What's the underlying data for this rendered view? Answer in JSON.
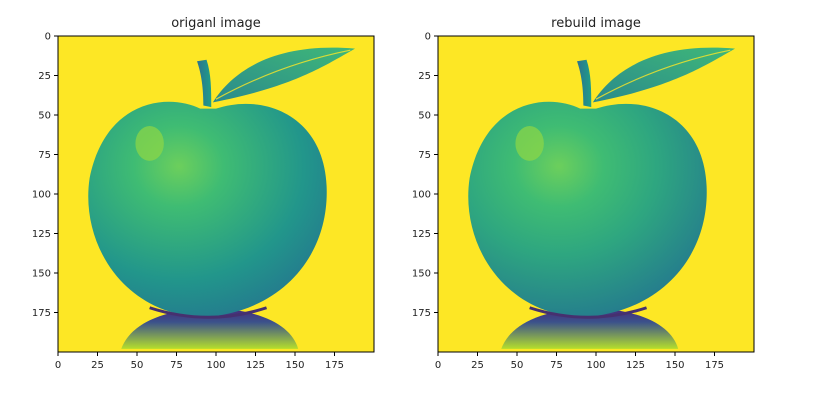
{
  "chart_data": [
    {
      "type": "heatmap",
      "title": "origanl image",
      "image_size": [
        200,
        200
      ],
      "colormap": "viridis",
      "background_value": "high (yellow)",
      "subject": "apple-with-leaf",
      "x_ticks": [
        0,
        25,
        50,
        75,
        100,
        125,
        150,
        175
      ],
      "y_ticks": [
        0,
        25,
        50,
        75,
        100,
        125,
        150,
        175
      ],
      "xlim": [
        0,
        200
      ],
      "ylim": [
        200,
        0
      ]
    },
    {
      "type": "heatmap",
      "title": "rebuild image",
      "image_size": [
        200,
        200
      ],
      "colormap": "viridis",
      "background_value": "high (yellow)",
      "subject": "apple-with-leaf",
      "x_ticks": [
        0,
        25,
        50,
        75,
        100,
        125,
        150,
        175
      ],
      "y_ticks": [
        0,
        25,
        50,
        75,
        100,
        125,
        150,
        175
      ],
      "xlim": [
        0,
        200
      ],
      "ylim": [
        200,
        0
      ]
    }
  ],
  "colors": {
    "background_yellow": "#fde725",
    "apple_dark": "#21918c",
    "apple_mid": "#35b779",
    "apple_light": "#5ec962",
    "shadow_dark": "#3b528b",
    "shadow_deep": "#440154"
  }
}
